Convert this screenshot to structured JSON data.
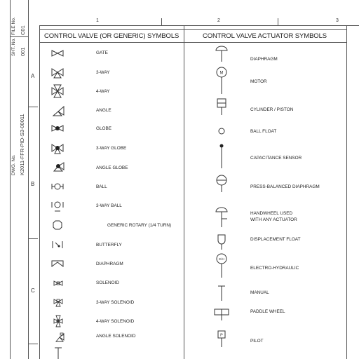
{
  "title_block": {
    "file_label": "FILE No.",
    "file_value": "C01",
    "sheet_label": "SHT. No.",
    "sheet_value": "001",
    "dwg_label": "DWG. No.",
    "dwg_value": "K2011-FFR-PID-S3-00011"
  },
  "grid": {
    "columns": [
      "1",
      "2",
      "3"
    ],
    "rows": [
      "A",
      "B",
      "C"
    ]
  },
  "left_table": {
    "header": "CONTROL VALVE (OR GENERIC) SYMBOLS",
    "items": [
      {
        "label": "GATE",
        "icon": "gate-valve-icon"
      },
      {
        "label": "3-WAY",
        "icon": "three-way-valve-icon"
      },
      {
        "label": "4-WAY",
        "icon": "four-way-valve-icon"
      },
      {
        "label": "ANGLE",
        "icon": "angle-valve-icon"
      },
      {
        "label": "GLOBE",
        "icon": "globe-valve-icon"
      },
      {
        "label": "3-WAY GLOBE",
        "icon": "three-way-globe-valve-icon"
      },
      {
        "label": "ANGLE GLOBE",
        "icon": "angle-globe-valve-icon"
      },
      {
        "label": "BALL",
        "icon": "ball-valve-icon"
      },
      {
        "label": "3-WAY BALL",
        "icon": "three-way-ball-valve-icon"
      },
      {
        "label": "GENERIC ROTARY (1/4 TURN)",
        "icon": "generic-rotary-valve-icon"
      },
      {
        "label": "BUTTERFLY",
        "icon": "butterfly-valve-icon"
      },
      {
        "label": "DIAPHRAGM",
        "icon": "diaphragm-valve-icon"
      },
      {
        "label": "SOLENOID",
        "icon": "solenoid-valve-icon"
      },
      {
        "label": "3-WAY SOLENOID",
        "icon": "three-way-solenoid-valve-icon"
      },
      {
        "label": "4-WAY SOLENOID",
        "icon": "four-way-solenoid-valve-icon"
      },
      {
        "label": "ANGLE SOLENOID",
        "icon": "angle-solenoid-valve-icon"
      }
    ]
  },
  "right_table": {
    "header": "CONTROL VALVE ACTUATOR SYMBOLS",
    "items": [
      {
        "label": "DIAPHRAGM",
        "icon": "diaphragm-actuator-icon"
      },
      {
        "label": "MOTOR",
        "icon": "motor-actuator-icon"
      },
      {
        "label": "CYLINDER / PISTON",
        "icon": "cylinder-piston-actuator-icon"
      },
      {
        "label": "BALL FLOAT",
        "icon": "ball-float-icon"
      },
      {
        "label": "CAPACITANCE SENSOR",
        "icon": "capacitance-sensor-icon"
      },
      {
        "label": "PRESS-BALANCED DIAPHRAGM",
        "icon": "press-balanced-diaphragm-icon"
      },
      {
        "label": "HANDWHEEL USED",
        "label2": "WITH ANY ACTUATOR",
        "icon": "handwheel-icon"
      },
      {
        "label": "DISPLACEMENT FLOAT",
        "icon": "displacement-float-icon"
      },
      {
        "label": "ELECTRO-HYDRAULIC",
        "icon": "electro-hydraulic-actuator-icon"
      },
      {
        "label": "MANUAL",
        "icon": "manual-actuator-icon"
      },
      {
        "label": "PADDLE WHEEL",
        "icon": "paddle-wheel-icon"
      },
      {
        "label": "PILOT",
        "icon": "pilot-actuator-icon"
      }
    ]
  }
}
